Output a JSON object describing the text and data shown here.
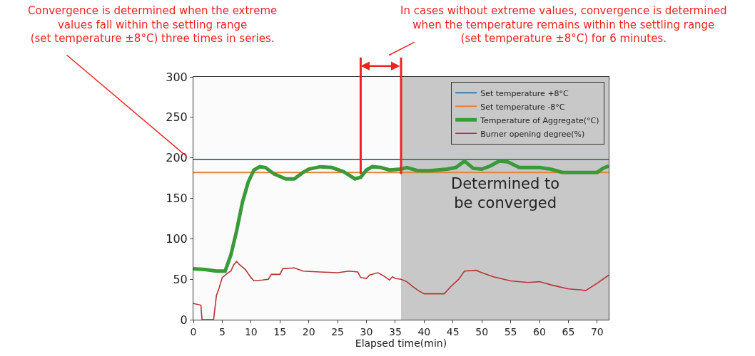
{
  "chart_data": {
    "type": "line",
    "xlabel": "Elapsed time(min)",
    "xlim": [
      0,
      72
    ],
    "xticks": [
      0,
      5,
      10,
      15,
      20,
      25,
      30,
      35,
      40,
      45,
      50,
      55,
      60,
      65,
      70
    ],
    "ylim": [
      0,
      300
    ],
    "yticks": [
      0,
      50,
      100,
      150,
      200,
      250,
      300
    ],
    "grid": false,
    "legend": "top right",
    "series": [
      {
        "name": "Set temperature +8°C",
        "color": "#3a78b0",
        "x": [
          0,
          72
        ],
        "values": [
          198,
          198
        ]
      },
      {
        "name": "Set temperature -8°C",
        "color": "#e8803a",
        "x": [
          0,
          72
        ],
        "values": [
          182,
          182
        ]
      },
      {
        "name": "Temperature of Aggregate(°C)",
        "color": "#3a9a3a",
        "x": [
          0,
          2,
          4,
          5.5,
          6.5,
          7.5,
          8.5,
          9.5,
          10.5,
          11.5,
          12.5,
          14,
          16,
          17.5,
          19,
          20,
          22,
          24,
          26,
          28,
          29,
          30,
          31,
          32.5,
          34,
          36,
          37,
          39,
          41,
          44,
          45.5,
          47,
          48.5,
          50,
          51.5,
          53,
          54.5,
          56.5,
          60,
          62,
          64,
          68,
          70,
          71,
          72
        ],
        "values": [
          63,
          62,
          60,
          60,
          80,
          110,
          145,
          170,
          185,
          189,
          188,
          180,
          174,
          174,
          182,
          186,
          189,
          188,
          183,
          174,
          176,
          185,
          189,
          188,
          185,
          186,
          188,
          184,
          184,
          186,
          188,
          196,
          187,
          186,
          190,
          196,
          195,
          188,
          188,
          186,
          182,
          182,
          182,
          187,
          190
        ]
      },
      {
        "name": "Burner opening degree(%)",
        "color": "#b83232",
        "x": [
          0,
          1.3,
          1.5,
          3.5,
          4,
          4.5,
          5,
          6,
          6.5,
          7,
          7.5,
          8,
          9,
          10,
          10.5,
          12,
          13,
          13.5,
          15,
          15.5,
          17.5,
          19,
          22,
          25,
          27,
          28.5,
          29,
          30,
          30.5,
          31,
          32,
          33,
          34,
          34.5,
          35,
          36,
          37,
          38,
          39,
          40,
          43.5,
          44.5,
          46,
          47,
          49,
          50,
          52,
          55,
          58,
          60,
          62,
          65,
          67,
          68,
          70,
          72
        ],
        "values": [
          20,
          18,
          0,
          0,
          30,
          40,
          52,
          58,
          60,
          68,
          72,
          68,
          62,
          52,
          48,
          49,
          50,
          56,
          56,
          63,
          64,
          60,
          59,
          58,
          60,
          59,
          52,
          51,
          55,
          56,
          58,
          54,
          49,
          53,
          51,
          50,
          47,
          41,
          36,
          32,
          32,
          40,
          50,
          60,
          61,
          58,
          53,
          48,
          46,
          47,
          43,
          38,
          37,
          36,
          45,
          55
        ]
      }
    ],
    "ref_lines": [
      {
        "axis": "x",
        "value": 29,
        "color": "#ee2222"
      },
      {
        "axis": "x",
        "value": 36,
        "color": "#ee2222"
      }
    ],
    "bands": [
      {
        "axis": "x",
        "from": 36,
        "to": 72,
        "label": "Determined to\nbe converged",
        "color": "#c8c8c8"
      }
    ],
    "annotations": [
      "Convergence is determined when the extreme\nvalues fall within the settling range\n(set temperature ±8°C) three times in series.",
      "In cases without extreme values, convergence is determined\nwhen the temperature remains within the settling range\n(set temperature ±8°C) for 6 minutes."
    ]
  }
}
